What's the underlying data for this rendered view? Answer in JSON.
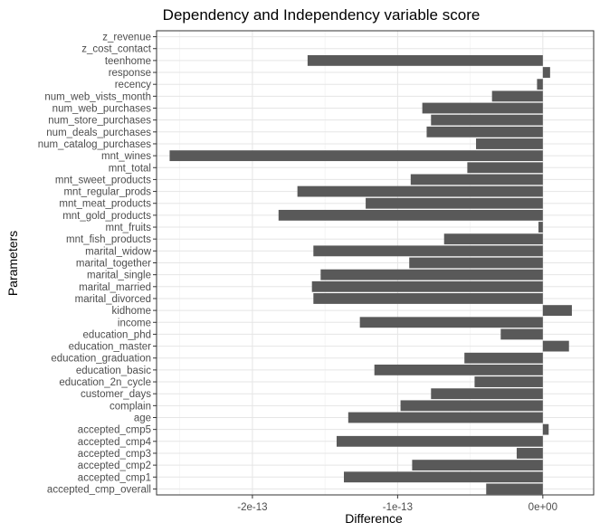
{
  "chart_data": {
    "type": "bar",
    "orientation": "horizontal",
    "title": "Dependency and Independency variable score",
    "xlabel": "Difference",
    "ylabel": "Parameters",
    "xlim": [
      -2.66e-13,
      3.5e-14
    ],
    "xticks": [
      -2e-13,
      -1e-13,
      0
    ],
    "xtick_labels": [
      "-2e-13",
      "-1e-13",
      "0e+00"
    ],
    "grid": true,
    "bar_color": "#595959",
    "categories": [
      "z_revenue",
      "z_cost_contact",
      "teenhome",
      "response",
      "recency",
      "num_web_vists_month",
      "num_web_purchases",
      "num_store_purchases",
      "num_deals_purchases",
      "num_catalog_purchases",
      "mnt_wines",
      "mnt_total",
      "mnt_sweet_products",
      "mnt_regular_prods",
      "mnt_meat_products",
      "mnt_gold_products",
      "mnt_fruits",
      "mnt_fish_products",
      "marital_widow",
      "marital_together",
      "marital_single",
      "marital_married",
      "marital_divorced",
      "kidhome",
      "income",
      "education_phd",
      "education_master",
      "education_graduation",
      "education_basic",
      "education_2n_cycle",
      "customer_days",
      "complain",
      "age",
      "accepted_cmp5",
      "accepted_cmp4",
      "accepted_cmp3",
      "accepted_cmp2",
      "accepted_cmp1",
      "accepted_cmp_overall"
    ],
    "values": [
      0,
      0,
      -1.62e-13,
      5e-15,
      -4e-15,
      -3.5e-14,
      -8.3e-14,
      -7.7e-14,
      -8e-14,
      -4.6e-14,
      -2.57e-13,
      -5.2e-14,
      -9.1e-14,
      -1.69e-13,
      -1.22e-13,
      -1.82e-13,
      -3e-15,
      -6.8e-14,
      -1.58e-13,
      -9.2e-14,
      -1.53e-13,
      -1.59e-13,
      -1.58e-13,
      2e-14,
      -1.26e-13,
      -2.9e-14,
      1.8e-14,
      -5.4e-14,
      -1.16e-13,
      -4.7e-14,
      -7.7e-14,
      -9.8e-14,
      -1.34e-13,
      4e-15,
      -1.42e-13,
      -1.8e-14,
      -9e-14,
      -1.37e-13,
      -3.9e-14
    ]
  }
}
